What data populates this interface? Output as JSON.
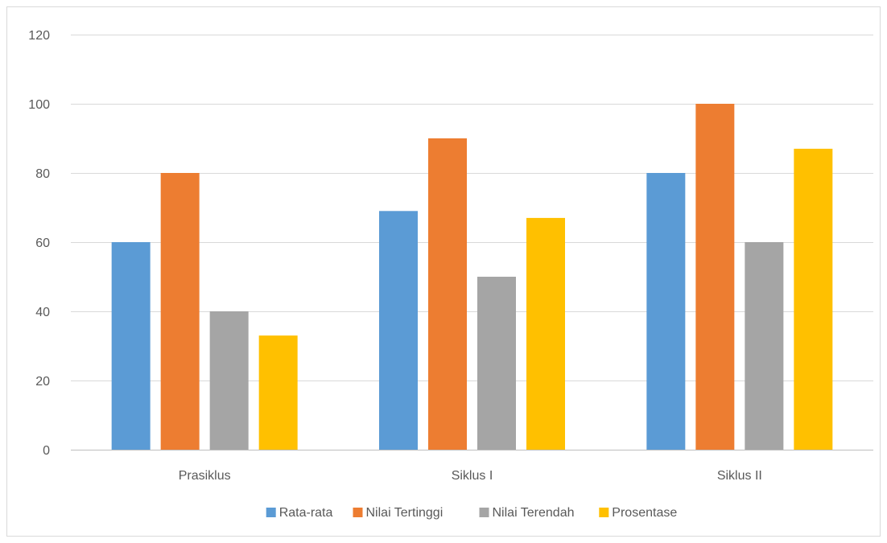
{
  "chart_data": {
    "type": "bar",
    "title": "",
    "xlabel": "",
    "ylabel": "",
    "categories": [
      "Prasiklus",
      "Siklus I",
      "Siklus II"
    ],
    "series": [
      {
        "name": "Rata-rata",
        "color": "#5b9bd5",
        "values": [
          60,
          69,
          80
        ]
      },
      {
        "name": "Nilai Tertinggi",
        "color": "#ed7d31",
        "values": [
          80,
          90,
          100
        ]
      },
      {
        "name": "Nilai Terendah",
        "color": "#a5a5a5",
        "values": [
          40,
          50,
          60
        ]
      },
      {
        "name": "Prosentase",
        "color": "#ffc000",
        "values": [
          33,
          67,
          87
        ]
      }
    ],
    "ylim": [
      0,
      120
    ],
    "yticks": [
      0,
      20,
      40,
      60,
      80,
      100,
      120
    ],
    "grid": true,
    "legend_position": "bottom"
  }
}
